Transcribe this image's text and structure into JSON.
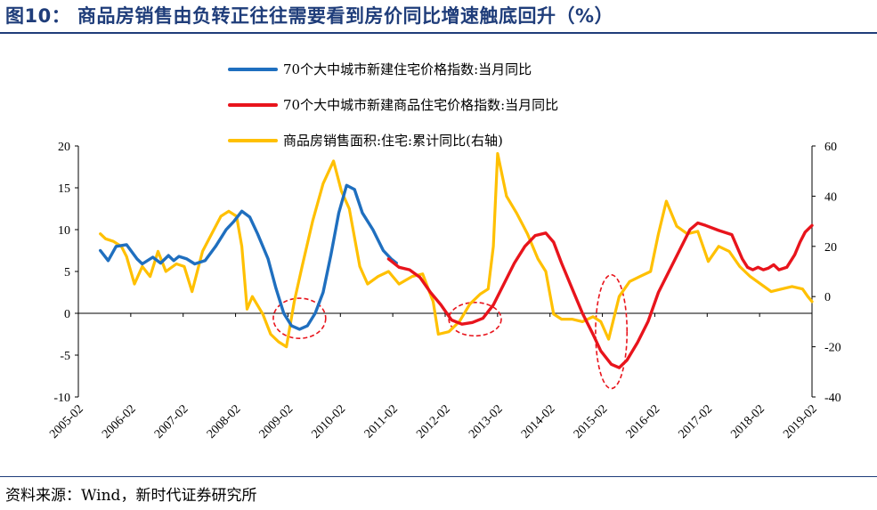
{
  "header": {
    "title": "图10：  商品房销售由负转正往往需要看到房价同比增速触底回升（%）"
  },
  "footer": {
    "source": "资料来源：Wind，新时代证券研究所"
  },
  "chart_data": {
    "type": "line",
    "left_axis": {
      "ylim": [
        -10,
        20
      ],
      "ticks": [
        "20",
        "15",
        "10",
        "5",
        "0",
        "-5",
        "-10"
      ]
    },
    "right_axis": {
      "ylim": [
        -40,
        60
      ],
      "ticks": [
        "60",
        "40",
        "20",
        "0",
        "-20",
        "-40"
      ]
    },
    "x_ticks": [
      "2005-02",
      "2006-02",
      "2007-02",
      "2008-02",
      "2009-02",
      "2010-02",
      "2011-02",
      "2012-02",
      "2013-02",
      "2014-02",
      "2015-02",
      "2016-02",
      "2017-02",
      "2018-02",
      "2019-02"
    ],
    "xlim": [
      2005.08,
      2019.08
    ],
    "legend": {
      "placement": "top-center"
    },
    "series": [
      {
        "name": "70个大中城市新建住宅价格指数:当月同比",
        "color": "#1f6fbf",
        "axis": "left",
        "points": [
          [
            2005.5,
            7.5
          ],
          [
            2005.65,
            6.3
          ],
          [
            2005.8,
            8.0
          ],
          [
            2006.0,
            8.2
          ],
          [
            2006.2,
            6.5
          ],
          [
            2006.3,
            5.9
          ],
          [
            2006.5,
            6.7
          ],
          [
            2006.65,
            6.0
          ],
          [
            2006.8,
            6.9
          ],
          [
            2006.9,
            6.3
          ],
          [
            2007.0,
            6.8
          ],
          [
            2007.15,
            6.5
          ],
          [
            2007.3,
            5.9
          ],
          [
            2007.5,
            6.3
          ],
          [
            2007.7,
            8.0
          ],
          [
            2007.9,
            10.0
          ],
          [
            2008.05,
            11.0
          ],
          [
            2008.2,
            12.2
          ],
          [
            2008.35,
            11.5
          ],
          [
            2008.5,
            9.5
          ],
          [
            2008.7,
            6.5
          ],
          [
            2008.85,
            3.0
          ],
          [
            2009.0,
            0.0
          ],
          [
            2009.15,
            -1.5
          ],
          [
            2009.3,
            -1.9
          ],
          [
            2009.45,
            -1.5
          ],
          [
            2009.6,
            0.0
          ],
          [
            2009.75,
            2.5
          ],
          [
            2009.9,
            7.0
          ],
          [
            2010.05,
            12.0
          ],
          [
            2010.2,
            15.3
          ],
          [
            2010.35,
            14.8
          ],
          [
            2010.5,
            12.0
          ],
          [
            2010.7,
            10.0
          ],
          [
            2010.9,
            7.5
          ],
          [
            2011.05,
            6.5
          ],
          [
            2011.15,
            6.0
          ]
        ]
      },
      {
        "name": "70个大中城市新建商品住宅价格指数:当月同比",
        "color": "#e8141c",
        "axis": "left",
        "points": [
          [
            2011.0,
            6.5
          ],
          [
            2011.2,
            5.5
          ],
          [
            2011.4,
            5.2
          ],
          [
            2011.6,
            4.3
          ],
          [
            2011.8,
            2.5
          ],
          [
            2012.0,
            1.0
          ],
          [
            2012.2,
            -0.8
          ],
          [
            2012.4,
            -1.3
          ],
          [
            2012.6,
            -1.1
          ],
          [
            2012.8,
            -0.6
          ],
          [
            2013.0,
            1.0
          ],
          [
            2013.2,
            3.5
          ],
          [
            2013.4,
            6.0
          ],
          [
            2013.6,
            8.0
          ],
          [
            2013.8,
            9.3
          ],
          [
            2014.0,
            9.6
          ],
          [
            2014.15,
            8.5
          ],
          [
            2014.3,
            6.0
          ],
          [
            2014.5,
            3.0
          ],
          [
            2014.7,
            0.0
          ],
          [
            2014.9,
            -2.5
          ],
          [
            2015.05,
            -4.5
          ],
          [
            2015.25,
            -6.1
          ],
          [
            2015.4,
            -6.5
          ],
          [
            2015.55,
            -5.6
          ],
          [
            2015.75,
            -3.5
          ],
          [
            2015.95,
            -1.0
          ],
          [
            2016.15,
            2.5
          ],
          [
            2016.35,
            5.0
          ],
          [
            2016.55,
            7.5
          ],
          [
            2016.75,
            10.0
          ],
          [
            2016.9,
            10.8
          ],
          [
            2017.05,
            10.5
          ],
          [
            2017.3,
            9.9
          ],
          [
            2017.55,
            9.4
          ],
          [
            2017.75,
            6.5
          ],
          [
            2017.85,
            5.5
          ],
          [
            2017.95,
            5.2
          ],
          [
            2018.05,
            5.5
          ],
          [
            2018.15,
            5.2
          ],
          [
            2018.25,
            5.4
          ],
          [
            2018.35,
            5.8
          ],
          [
            2018.45,
            5.2
          ],
          [
            2018.6,
            5.5
          ],
          [
            2018.75,
            7.0
          ],
          [
            2018.85,
            8.5
          ],
          [
            2018.95,
            9.7
          ],
          [
            2019.08,
            10.5
          ]
        ]
      },
      {
        "name": "商品房销售面积:住宅:累计同比(右轴)",
        "color": "#ffc000",
        "axis": "right",
        "points": [
          [
            2005.5,
            25
          ],
          [
            2005.6,
            23
          ],
          [
            2005.75,
            22
          ],
          [
            2005.9,
            20
          ],
          [
            2006.0,
            16
          ],
          [
            2006.15,
            5
          ],
          [
            2006.3,
            12
          ],
          [
            2006.45,
            8
          ],
          [
            2006.6,
            18
          ],
          [
            2006.75,
            10
          ],
          [
            2006.95,
            13
          ],
          [
            2007.1,
            12
          ],
          [
            2007.25,
            2
          ],
          [
            2007.45,
            18
          ],
          [
            2007.6,
            24
          ],
          [
            2007.8,
            32
          ],
          [
            2007.95,
            34
          ],
          [
            2008.1,
            32
          ],
          [
            2008.2,
            20
          ],
          [
            2008.3,
            -5
          ],
          [
            2008.4,
            0
          ],
          [
            2008.6,
            -7
          ],
          [
            2008.75,
            -15
          ],
          [
            2008.9,
            -18
          ],
          [
            2009.05,
            -20
          ],
          [
            2009.2,
            -2
          ],
          [
            2009.35,
            12
          ],
          [
            2009.55,
            30
          ],
          [
            2009.75,
            45
          ],
          [
            2009.95,
            54
          ],
          [
            2010.1,
            42
          ],
          [
            2010.25,
            35
          ],
          [
            2010.45,
            12
          ],
          [
            2010.6,
            5
          ],
          [
            2010.8,
            8
          ],
          [
            2011.0,
            10
          ],
          [
            2011.2,
            5
          ],
          [
            2011.45,
            8
          ],
          [
            2011.65,
            9
          ],
          [
            2011.85,
            -2
          ],
          [
            2011.95,
            -15
          ],
          [
            2012.15,
            -14
          ],
          [
            2012.35,
            -10
          ],
          [
            2012.55,
            -3
          ],
          [
            2012.75,
            1
          ],
          [
            2012.9,
            3
          ],
          [
            2013.0,
            20
          ],
          [
            2013.08,
            57
          ],
          [
            2013.25,
            40
          ],
          [
            2013.45,
            33
          ],
          [
            2013.65,
            25
          ],
          [
            2013.85,
            15
          ],
          [
            2014.0,
            10
          ],
          [
            2014.15,
            -7
          ],
          [
            2014.3,
            -9
          ],
          [
            2014.5,
            -9
          ],
          [
            2014.7,
            -10
          ],
          [
            2014.9,
            -8
          ],
          [
            2015.05,
            -10
          ],
          [
            2015.2,
            -17
          ],
          [
            2015.4,
            0
          ],
          [
            2015.6,
            6
          ],
          [
            2015.8,
            8
          ],
          [
            2016.0,
            10
          ],
          [
            2016.15,
            25
          ],
          [
            2016.3,
            38
          ],
          [
            2016.5,
            28
          ],
          [
            2016.7,
            25
          ],
          [
            2016.9,
            26
          ],
          [
            2017.1,
            14
          ],
          [
            2017.3,
            20
          ],
          [
            2017.5,
            18
          ],
          [
            2017.7,
            12
          ],
          [
            2017.9,
            8
          ],
          [
            2018.1,
            5
          ],
          [
            2018.3,
            2
          ],
          [
            2018.5,
            3
          ],
          [
            2018.7,
            4
          ],
          [
            2018.9,
            3
          ],
          [
            2019.0,
            0
          ],
          [
            2019.08,
            -2
          ]
        ]
      }
    ],
    "annotations": [
      {
        "shape": "ellipse",
        "style": "dashed",
        "color": "#e8141c",
        "x": 2009.3,
        "y": -0.6,
        "rx_years": 0.5,
        "ry_units": 2.4
      },
      {
        "shape": "ellipse",
        "style": "dashed",
        "color": "#e8141c",
        "x": 2012.65,
        "y": -0.7,
        "rx_years": 0.5,
        "ry_units": 2.0
      },
      {
        "shape": "ellipse",
        "style": "dashed",
        "color": "#e8141c",
        "x": 2015.25,
        "y": -2.2,
        "rx_years": 0.3,
        "ry_units": 6.8
      }
    ]
  }
}
